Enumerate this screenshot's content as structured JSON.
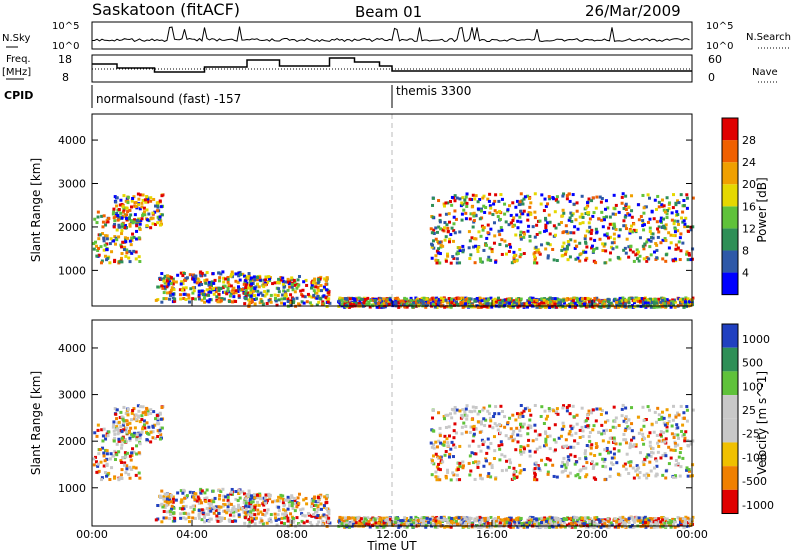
{
  "header": {
    "title": "Saskatoon (fitACF)",
    "beam": "Beam 01",
    "date": "26/Mar/2009"
  },
  "noise_panel": {
    "left_label": "N.Sky",
    "right_label": "N.Search",
    "left_ticks": [
      "10^5",
      "10^0"
    ],
    "right_ticks": [
      "10^5",
      "10^0"
    ]
  },
  "freq_panel": {
    "left_label_1": "Freq.",
    "left_label_2": "[MHz]",
    "right_label": "Nave",
    "left_ticks": [
      "18",
      "8"
    ],
    "right_ticks": [
      "60",
      "0"
    ]
  },
  "cpid": {
    "label": "CPID",
    "segments": [
      {
        "start_hour": 0,
        "name": "normalsound (fast) -157"
      },
      {
        "start_hour": 12,
        "name": "themis 3300"
      }
    ]
  },
  "chart_data": [
    {
      "type": "heatmap",
      "ylabel": "Slant Range [km]",
      "xlim": [
        0,
        24
      ],
      "ylim": [
        180,
        4600
      ],
      "yticks": [
        1000,
        2000,
        3000,
        4000
      ],
      "colorbar": {
        "label": "Power [dB]",
        "ticks": [
          "4",
          "8",
          "12",
          "16",
          "20",
          "24",
          "28"
        ],
        "colors": [
          "#0000ff",
          "#2e58a8",
          "#2f8f57",
          "#5fc23a",
          "#e5d800",
          "#f0a000",
          "#f06000",
          "#e00000"
        ]
      },
      "echo_regions": [
        {
          "t": [
            0.0,
            1.9
          ],
          "range": [
            1200,
            2400
          ]
        },
        {
          "t": [
            0.8,
            2.8
          ],
          "range": [
            2000,
            2800
          ]
        },
        {
          "t": [
            2.5,
            6.5
          ],
          "range": [
            300,
            1000
          ]
        },
        {
          "t": [
            6.0,
            9.5
          ],
          "range": [
            200,
            900
          ]
        },
        {
          "t": [
            13.5,
            24.0
          ],
          "range": [
            1200,
            2800
          ]
        },
        {
          "t": [
            9.8,
            24.0
          ],
          "range": [
            180,
            400
          ]
        }
      ]
    },
    {
      "type": "heatmap",
      "xlabel": "Time UT",
      "ylabel": "Slant Range [km]",
      "xlim": [
        0,
        24
      ],
      "ylim": [
        180,
        4600
      ],
      "yticks": [
        1000,
        2000,
        3000,
        4000
      ],
      "xticks": [
        "00:00",
        "04:00",
        "08:00",
        "12:00",
        "16:00",
        "20:00",
        "00:00"
      ],
      "colorbar": {
        "label": "Velocity [m s^-1]",
        "ticks": [
          "1000",
          "500",
          "100",
          "25",
          "-25",
          "-100",
          "-500",
          "-1000"
        ],
        "colors": [
          "#2040c0",
          "#2f8f57",
          "#5fc23a",
          "#c8c8c8",
          "#c8c8c8",
          "#f0c000",
          "#f08000",
          "#e00000"
        ]
      }
    }
  ]
}
